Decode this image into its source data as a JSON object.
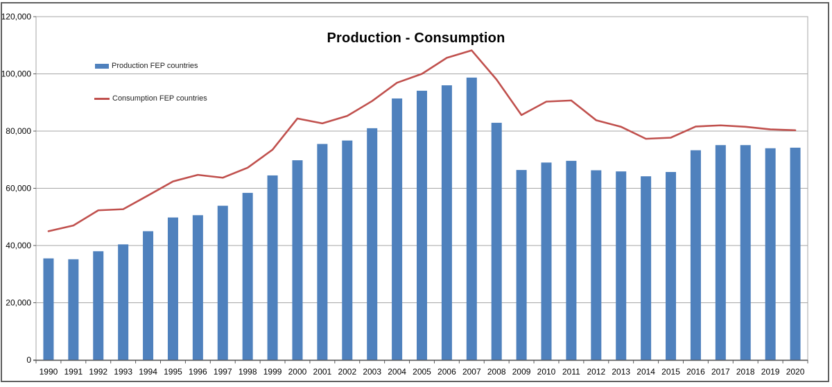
{
  "title": "Production - Consumption",
  "chart_data": {
    "type": "bar",
    "title": "Production - Consumption",
    "categories": [
      "1990",
      "1991",
      "1992",
      "1993",
      "1994",
      "1995",
      "1996",
      "1997",
      "1998",
      "1999",
      "2000",
      "2001",
      "2002",
      "2003",
      "2004",
      "2005",
      "2006",
      "2007",
      "2008",
      "2009",
      "2010",
      "2011",
      "2012",
      "2013",
      "2014",
      "2015",
      "2016",
      "2017",
      "2018",
      "2019",
      "2020"
    ],
    "series": [
      {
        "name": "Production FEP countries",
        "type": "bar",
        "color": "#4F81BD",
        "values": [
          35500,
          35200,
          38000,
          40400,
          45000,
          49800,
          50600,
          53900,
          58400,
          64500,
          69800,
          75500,
          76700,
          81000,
          91400,
          94100,
          96000,
          98700,
          82900,
          66400,
          69000,
          69600,
          66300,
          65900,
          64200,
          65700,
          73300,
          75100,
          75100,
          74000,
          74200
        ]
      },
      {
        "name": "Consumption FEP countries",
        "type": "line",
        "color": "#C0504D",
        "values": [
          45000,
          47000,
          52300,
          52700,
          57500,
          62400,
          64700,
          63700,
          67200,
          73500,
          84400,
          82700,
          85300,
          90500,
          96900,
          100000,
          105600,
          108200,
          98000,
          85600,
          90300,
          90700,
          83800,
          81500,
          77300,
          77700,
          81600,
          82000,
          81500,
          80600,
          80300
        ]
      }
    ],
    "xlabel": "",
    "ylabel": "",
    "ylim": [
      0,
      120000
    ],
    "ytick_interval": 20000,
    "ytick_labels": [
      "0",
      "20,000",
      "40,000",
      "60,000",
      "80,000",
      "100,000",
      "120,000"
    ],
    "grid": true,
    "legend_position": "inside-top-left"
  },
  "colors": {
    "bar": "#4F81BD",
    "line": "#C0504D",
    "gridline": "#A6A6A6",
    "plot_border": "#A6A6A6",
    "axis": "#595959",
    "outer_border": "#5F5F5F",
    "text": "#000000"
  }
}
